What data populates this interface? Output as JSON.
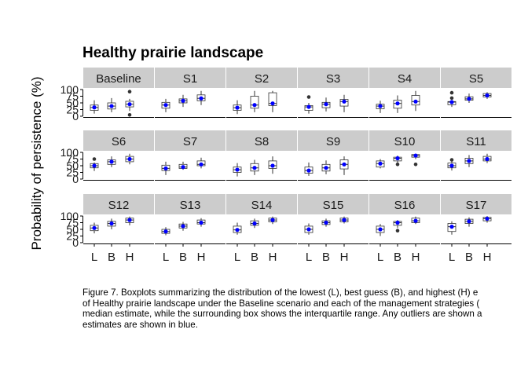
{
  "chart_data": {
    "type": "boxplot",
    "title": "Healthy prairie landscape",
    "ylabel": "Probability of persistence (%)",
    "xlabel": "",
    "categories": [
      "L",
      "B",
      "H"
    ],
    "yticks": [
      0,
      25,
      50,
      75,
      100
    ],
    "ylim": [
      -3,
      103
    ],
    "grid": false,
    "median_color": "#0000ff",
    "box_fill": "#ffffff",
    "strip_color": "#cccccc",
    "panels": [
      {
        "name": "Baseline",
        "boxes": [
          {
            "cat": "L",
            "min": 10,
            "q1": 22,
            "median": 33,
            "q3": 42,
            "max": 60,
            "outliers": []
          },
          {
            "cat": "B",
            "min": 15,
            "q1": 27,
            "median": 38,
            "q3": 50,
            "max": 68,
            "outliers": []
          },
          {
            "cat": "H",
            "min": 20,
            "q1": 35,
            "median": 45,
            "q3": 56,
            "max": 65,
            "outliers": [
              92,
              5
            ]
          }
        ]
      },
      {
        "name": "S1",
        "boxes": [
          {
            "cat": "L",
            "min": 15,
            "q1": 30,
            "median": 42,
            "q3": 52,
            "max": 65,
            "outliers": []
          },
          {
            "cat": "B",
            "min": 35,
            "q1": 50,
            "median": 58,
            "q3": 65,
            "max": 80,
            "outliers": []
          },
          {
            "cat": "H",
            "min": 42,
            "q1": 58,
            "median": 67,
            "q3": 80,
            "max": 95,
            "outliers": []
          }
        ]
      },
      {
        "name": "S2",
        "boxes": [
          {
            "cat": "L",
            "min": 8,
            "q1": 22,
            "median": 32,
            "q3": 42,
            "max": 60,
            "outliers": []
          },
          {
            "cat": "B",
            "min": 15,
            "q1": 30,
            "median": 42,
            "q3": 75,
            "max": 95,
            "outliers": []
          },
          {
            "cat": "H",
            "min": 15,
            "q1": 40,
            "median": 48,
            "q3": 88,
            "max": 95,
            "outliers": []
          }
        ]
      },
      {
        "name": "S3",
        "boxes": [
          {
            "cat": "L",
            "min": 10,
            "q1": 22,
            "median": 35,
            "q3": 40,
            "max": 50,
            "outliers": [
              72
            ]
          },
          {
            "cat": "B",
            "min": 18,
            "q1": 32,
            "median": 45,
            "q3": 52,
            "max": 70,
            "outliers": []
          },
          {
            "cat": "H",
            "min": 15,
            "q1": 38,
            "median": 55,
            "q3": 63,
            "max": 80,
            "outliers": []
          }
        ]
      },
      {
        "name": "S4",
        "boxes": [
          {
            "cat": "L",
            "min": 12,
            "q1": 28,
            "median": 38,
            "q3": 45,
            "max": 58,
            "outliers": []
          },
          {
            "cat": "B",
            "min": 12,
            "q1": 30,
            "median": 48,
            "q3": 60,
            "max": 78,
            "outliers": []
          },
          {
            "cat": "H",
            "min": 20,
            "q1": 42,
            "median": 55,
            "q3": 78,
            "max": 95,
            "outliers": []
          }
        ]
      },
      {
        "name": "S5",
        "boxes": [
          {
            "cat": "L",
            "min": 35,
            "q1": 43,
            "median": 53,
            "q3": 55,
            "max": 60,
            "outliers": [
              88,
              68
            ]
          },
          {
            "cat": "B",
            "min": 50,
            "q1": 60,
            "median": 65,
            "q3": 73,
            "max": 85,
            "outliers": []
          },
          {
            "cat": "H",
            "min": 65,
            "q1": 72,
            "median": 78,
            "q3": 85,
            "max": 90,
            "outliers": []
          }
        ]
      },
      {
        "name": "S6",
        "boxes": [
          {
            "cat": "L",
            "min": 30,
            "q1": 42,
            "median": 50,
            "q3": 58,
            "max": 62,
            "outliers": [
              75
            ]
          },
          {
            "cat": "B",
            "min": 45,
            "q1": 55,
            "median": 65,
            "q3": 72,
            "max": 85,
            "outliers": []
          },
          {
            "cat": "H",
            "min": 55,
            "q1": 65,
            "median": 75,
            "q3": 85,
            "max": 95,
            "outliers": []
          }
        ]
      },
      {
        "name": "S7",
        "boxes": [
          {
            "cat": "L",
            "min": 15,
            "q1": 32,
            "median": 40,
            "q3": 52,
            "max": 65,
            "outliers": []
          },
          {
            "cat": "B",
            "min": 35,
            "q1": 40,
            "median": 45,
            "q3": 55,
            "max": 65,
            "outliers": []
          },
          {
            "cat": "H",
            "min": 40,
            "q1": 50,
            "median": 55,
            "q3": 68,
            "max": 80,
            "outliers": []
          }
        ]
      },
      {
        "name": "S8",
        "boxes": [
          {
            "cat": "L",
            "min": 10,
            "q1": 25,
            "median": 35,
            "q3": 45,
            "max": 60,
            "outliers": []
          },
          {
            "cat": "B",
            "min": 15,
            "q1": 30,
            "median": 42,
            "q3": 58,
            "max": 72,
            "outliers": []
          },
          {
            "cat": "H",
            "min": 20,
            "q1": 40,
            "median": 50,
            "q3": 68,
            "max": 85,
            "outliers": []
          }
        ]
      },
      {
        "name": "S9",
        "boxes": [
          {
            "cat": "L",
            "min": 12,
            "q1": 22,
            "median": 32,
            "q3": 45,
            "max": 62,
            "outliers": []
          },
          {
            "cat": "B",
            "min": 18,
            "q1": 30,
            "median": 42,
            "q3": 55,
            "max": 70,
            "outliers": []
          },
          {
            "cat": "H",
            "min": 15,
            "q1": 38,
            "median": 55,
            "q3": 72,
            "max": 85,
            "outliers": []
          }
        ]
      },
      {
        "name": "S10",
        "boxes": [
          {
            "cat": "L",
            "min": 40,
            "q1": 45,
            "median": 58,
            "q3": 68,
            "max": 75,
            "outliers": []
          },
          {
            "cat": "B",
            "min": 60,
            "q1": 68,
            "median": 78,
            "q3": 82,
            "max": 88,
            "outliers": [
              55
            ]
          },
          {
            "cat": "H",
            "min": 75,
            "q1": 82,
            "median": 88,
            "q3": 92,
            "max": 95,
            "outliers": [
              55
            ]
          }
        ]
      },
      {
        "name": "S11",
        "boxes": [
          {
            "cat": "L",
            "min": 32,
            "q1": 42,
            "median": 50,
            "q3": 60,
            "max": 68,
            "outliers": [
              72
            ]
          },
          {
            "cat": "B",
            "min": 45,
            "q1": 58,
            "median": 68,
            "q3": 78,
            "max": 90,
            "outliers": []
          },
          {
            "cat": "H",
            "min": 60,
            "q1": 68,
            "median": 75,
            "q3": 85,
            "max": 95,
            "outliers": []
          }
        ]
      },
      {
        "name": "S12",
        "boxes": [
          {
            "cat": "L",
            "min": 35,
            "q1": 45,
            "median": 55,
            "q3": 65,
            "max": 75,
            "outliers": []
          },
          {
            "cat": "B",
            "min": 50,
            "q1": 62,
            "median": 72,
            "q3": 80,
            "max": 90,
            "outliers": []
          },
          {
            "cat": "H",
            "min": 65,
            "q1": 75,
            "median": 85,
            "q3": 92,
            "max": 98,
            "outliers": []
          }
        ]
      },
      {
        "name": "S13",
        "boxes": [
          {
            "cat": "L",
            "min": 28,
            "q1": 35,
            "median": 42,
            "q3": 50,
            "max": 58,
            "outliers": []
          },
          {
            "cat": "B",
            "min": 45,
            "q1": 55,
            "median": 62,
            "q3": 70,
            "max": 78,
            "outliers": []
          },
          {
            "cat": "H",
            "min": 60,
            "q1": 70,
            "median": 75,
            "q3": 85,
            "max": 92,
            "outliers": []
          }
        ]
      },
      {
        "name": "S14",
        "boxes": [
          {
            "cat": "L",
            "min": 30,
            "q1": 38,
            "median": 48,
            "q3": 62,
            "max": 75,
            "outliers": []
          },
          {
            "cat": "B",
            "min": 55,
            "q1": 65,
            "median": 72,
            "q3": 82,
            "max": 90,
            "outliers": []
          },
          {
            "cat": "H",
            "min": 70,
            "q1": 78,
            "median": 85,
            "q3": 92,
            "max": 98,
            "outliers": []
          }
        ]
      },
      {
        "name": "S15",
        "boxes": [
          {
            "cat": "L",
            "min": 30,
            "q1": 38,
            "median": 50,
            "q3": 62,
            "max": 72,
            "outliers": []
          },
          {
            "cat": "B",
            "min": 60,
            "q1": 68,
            "median": 75,
            "q3": 82,
            "max": 90,
            "outliers": []
          },
          {
            "cat": "H",
            "min": 72,
            "q1": 78,
            "median": 85,
            "q3": 92,
            "max": 98,
            "outliers": []
          }
        ]
      },
      {
        "name": "S16",
        "boxes": [
          {
            "cat": "L",
            "min": 25,
            "q1": 38,
            "median": 50,
            "q3": 62,
            "max": 70,
            "outliers": []
          },
          {
            "cat": "B",
            "min": 55,
            "q1": 65,
            "median": 75,
            "q3": 80,
            "max": 85,
            "outliers": [
              45
            ]
          },
          {
            "cat": "H",
            "min": 70,
            "q1": 75,
            "median": 82,
            "q3": 92,
            "max": 98,
            "outliers": []
          }
        ]
      },
      {
        "name": "S17",
        "boxes": [
          {
            "cat": "L",
            "min": 30,
            "q1": 42,
            "median": 60,
            "q3": 72,
            "max": 80,
            "outliers": []
          },
          {
            "cat": "B",
            "min": 60,
            "q1": 72,
            "median": 80,
            "q3": 88,
            "max": 95,
            "outliers": []
          },
          {
            "cat": "H",
            "min": 75,
            "q1": 82,
            "median": 90,
            "q3": 95,
            "max": 100,
            "outliers": []
          }
        ]
      }
    ]
  },
  "caption": {
    "lines": [
      "Figure 7. Boxplots summarizing the distribution of the lowest (L), best guess (B), and highest (H) e",
      "of Healthy prairie landscape under the Baseline scenario and each of the management strategies (",
      "median estimate, while the surrounding box shows the interquartile range. Any outliers are shown a",
      "estimates are shown in blue."
    ]
  }
}
